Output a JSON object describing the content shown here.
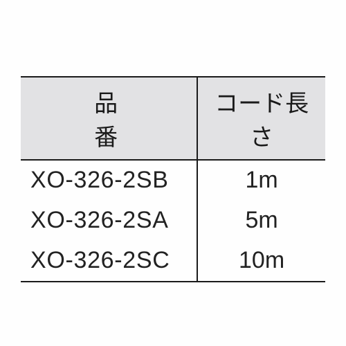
{
  "table": {
    "type": "table",
    "background_color": "#fefefe",
    "header_bg": "#e2e2e4",
    "border_color": "#1a1a1a",
    "border_width": 2.5,
    "font_size": 34,
    "text_color": "#222",
    "columns": [
      {
        "label": "品　番",
        "key": "part",
        "align": "left",
        "width_pct": 58
      },
      {
        "label": "コード長さ",
        "key": "len",
        "align": "center",
        "width_pct": 42
      }
    ],
    "rows": [
      {
        "part": "XO-326-2SB",
        "len": "1m"
      },
      {
        "part": "XO-326-2SA",
        "len": "5m"
      },
      {
        "part": "XO-326-2SC",
        "len": "10m"
      }
    ]
  }
}
